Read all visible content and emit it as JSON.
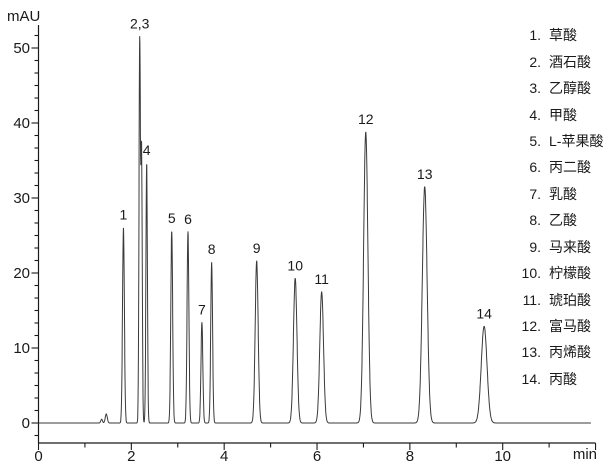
{
  "colors": {
    "background": "#ffffff",
    "axis": "#1a1a1a",
    "trace": "#3a3a3a",
    "text": "#1a1a1a"
  },
  "chart_data": {
    "type": "line",
    "kind": "chromatogram",
    "title": "",
    "ylabel": "mAU",
    "xlabel": "min",
    "grid": "off",
    "legend_position": "right",
    "x_axis": {
      "range_min": [
        0,
        12
      ],
      "major_tick_labels": [
        0,
        2,
        4,
        6,
        8,
        10
      ],
      "minor_tick_step_min": 1
    },
    "y_axis": {
      "range_mau": [
        -2.7,
        53
      ],
      "major_tick_labels": [
        0,
        10,
        20,
        30,
        40,
        50
      ],
      "minor_ticks_between_majors": 5
    },
    "baseline_mau": 0,
    "trace_end_min": 11.9,
    "peaks": [
      {
        "id": 1,
        "label": "1",
        "name": "草酸",
        "rt_min": 1.83,
        "height_mau": 26.1,
        "sigma_min": 0.02
      },
      {
        "id": 2,
        "label": "2,3",
        "name": "酒石酸",
        "rt_min": 2.18,
        "height_mau": 50.5,
        "sigma_min": 0.015
      },
      {
        "id": 3,
        "label": "",
        "name": "乙醇酸",
        "rt_min": 2.22,
        "height_mau": 36.0,
        "sigma_min": 0.015
      },
      {
        "id": 4,
        "label": "4",
        "name": "甲酸",
        "rt_min": 2.33,
        "height_mau": 34.7,
        "sigma_min": 0.016
      },
      {
        "id": 5,
        "label": "5",
        "name": "L-苹果酸",
        "rt_min": 2.87,
        "height_mau": 25.6,
        "sigma_min": 0.02
      },
      {
        "id": 6,
        "label": "6",
        "name": "丙二酸",
        "rt_min": 3.22,
        "height_mau": 25.5,
        "sigma_min": 0.02
      },
      {
        "id": 7,
        "label": "7",
        "name": "乳酸",
        "rt_min": 3.52,
        "height_mau": 13.4,
        "sigma_min": 0.02
      },
      {
        "id": 8,
        "label": "8",
        "name": "乙酸",
        "rt_min": 3.73,
        "height_mau": 21.5,
        "sigma_min": 0.02
      },
      {
        "id": 9,
        "label": "9",
        "name": "马来酸",
        "rt_min": 4.7,
        "height_mau": 21.6,
        "sigma_min": 0.032
      },
      {
        "id": 10,
        "label": "10",
        "name": "柠檬酸",
        "rt_min": 5.53,
        "height_mau": 19.3,
        "sigma_min": 0.038
      },
      {
        "id": 11,
        "label": "11",
        "name": "琥珀酸",
        "rt_min": 6.1,
        "height_mau": 17.5,
        "sigma_min": 0.04
      },
      {
        "id": 12,
        "label": "12",
        "name": "富马酸",
        "rt_min": 7.05,
        "height_mau": 38.8,
        "sigma_min": 0.046
      },
      {
        "id": 13,
        "label": "13",
        "name": "丙烯酸",
        "rt_min": 8.32,
        "height_mau": 31.5,
        "sigma_min": 0.052
      },
      {
        "id": 14,
        "label": "14",
        "name": "丙酸",
        "rt_min": 9.6,
        "height_mau": 12.9,
        "sigma_min": 0.062
      }
    ],
    "baseline_artifacts": [
      {
        "rt_min": 1.36,
        "height_mau": 0.5,
        "sigma_min": 0.018
      },
      {
        "rt_min": 1.46,
        "height_mau": 1.2,
        "sigma_min": 0.022
      }
    ]
  }
}
